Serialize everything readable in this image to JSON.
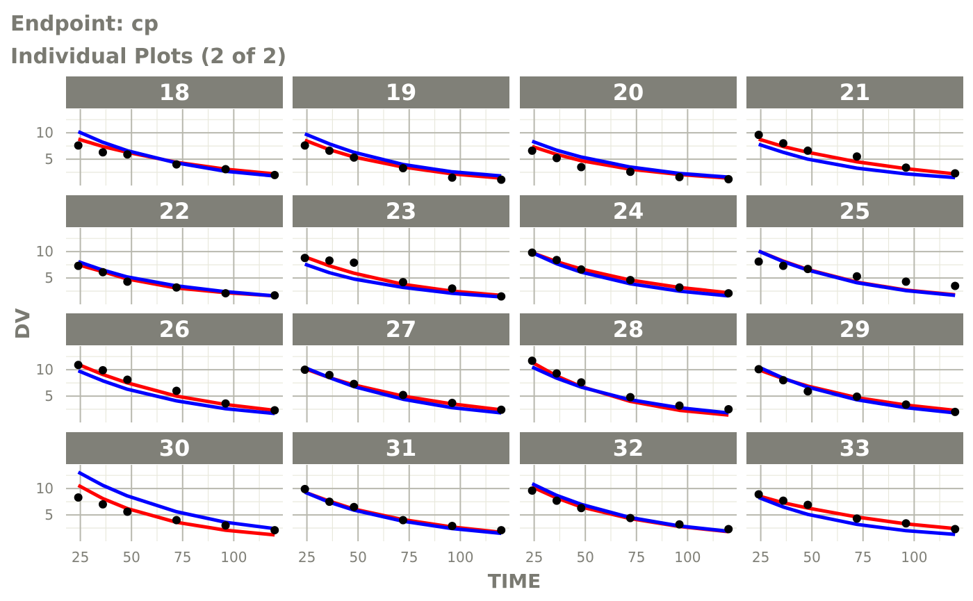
{
  "title": {
    "line1": "Endpoint:  cp",
    "line2": "Individual Plots (2 of 2)"
  },
  "colors": {
    "strip_background": "#808078",
    "strip_text": "#ffffff",
    "observed_points": "#000000",
    "series_red": "#ff0000",
    "series_blue": "#0000ff",
    "major_grid": "#b8b8ae",
    "minor_grid": "#e8e8dc"
  },
  "chart_data": {
    "type": "line",
    "layout": "facet_wrap 4x4",
    "xlabel": "TIME",
    "ylabel": "DV",
    "xlim": [
      18,
      124
    ],
    "ylim": [
      0,
      14.5
    ],
    "x_ticks": [
      25,
      50,
      75,
      100
    ],
    "y_ticks": [
      5,
      10
    ],
    "x": [
      24,
      36,
      48,
      72,
      96,
      120
    ],
    "grid": true,
    "legend": "none",
    "panels": [
      {
        "id": "18",
        "observed": [
          7.6,
          6.3,
          5.9,
          4.0,
          3.1,
          2.0
        ],
        "red": [
          8.8,
          7.4,
          6.3,
          4.4,
          3.1,
          2.2
        ],
        "blue": [
          10.2,
          8.2,
          6.6,
          4.3,
          2.7,
          1.8
        ]
      },
      {
        "id": "19",
        "observed": [
          7.6,
          6.6,
          5.3,
          3.3,
          1.5,
          1.1
        ],
        "red": [
          8.6,
          6.8,
          5.4,
          3.5,
          2.2,
          1.4
        ],
        "blue": [
          9.8,
          7.9,
          6.3,
          4.0,
          2.6,
          1.8
        ]
      },
      {
        "id": "20",
        "observed": [
          6.6,
          5.2,
          3.5,
          2.6,
          1.6,
          1.2
        ],
        "red": [
          7.4,
          5.9,
          4.7,
          3.1,
          2.1,
          1.4
        ],
        "blue": [
          8.4,
          6.7,
          5.4,
          3.5,
          2.3,
          1.6
        ]
      },
      {
        "id": "21",
        "observed": [
          9.6,
          8.0,
          6.6,
          5.5,
          3.4,
          2.3
        ],
        "red": [
          8.8,
          7.4,
          6.3,
          4.5,
          3.2,
          2.2
        ],
        "blue": [
          7.8,
          6.3,
          5.0,
          3.3,
          2.2,
          1.5
        ]
      },
      {
        "id": "22",
        "observed": [
          7.3,
          6.1,
          4.3,
          3.2,
          2.1,
          1.7
        ],
        "red": [
          7.5,
          6.2,
          4.8,
          3.1,
          2.2,
          1.6
        ],
        "blue": [
          8.1,
          6.5,
          5.2,
          3.5,
          2.4,
          1.6
        ]
      },
      {
        "id": "23",
        "observed": [
          8.8,
          8.3,
          7.9,
          4.2,
          3.0,
          1.5
        ],
        "red": [
          9.0,
          7.3,
          5.9,
          3.8,
          2.5,
          1.7
        ],
        "blue": [
          7.6,
          6.0,
          4.8,
          3.2,
          2.1,
          1.4
        ]
      },
      {
        "id": "24",
        "observed": [
          9.8,
          8.4,
          6.6,
          4.6,
          3.2,
          2.1
        ],
        "red": [
          9.8,
          8.1,
          6.7,
          4.6,
          3.2,
          2.2
        ],
        "blue": [
          9.8,
          7.7,
          6.1,
          3.9,
          2.5,
          1.6
        ]
      },
      {
        "id": "25",
        "observed": [
          8.1,
          7.3,
          6.7,
          5.3,
          4.3,
          3.5
        ],
        "red": [
          10.1,
          8.2,
          6.6,
          4.2,
          2.7,
          1.8
        ],
        "blue": [
          10.1,
          8.1,
          6.5,
          4.1,
          2.6,
          1.7
        ]
      },
      {
        "id": "26",
        "observed": [
          10.9,
          9.9,
          8.1,
          6.0,
          3.6,
          2.3
        ],
        "red": [
          11.0,
          9.1,
          7.5,
          5.0,
          3.4,
          2.3
        ],
        "blue": [
          9.8,
          7.9,
          6.3,
          4.1,
          2.6,
          1.7
        ]
      },
      {
        "id": "27",
        "observed": [
          10.0,
          9.0,
          7.3,
          5.2,
          3.7,
          2.4
        ],
        "red": [
          10.2,
          8.5,
          7.1,
          5.0,
          3.5,
          2.4
        ],
        "blue": [
          10.4,
          8.5,
          6.8,
          4.4,
          2.8,
          1.8
        ]
      },
      {
        "id": "28",
        "observed": [
          11.7,
          9.3,
          7.6,
          4.8,
          3.2,
          2.5
        ],
        "red": [
          11.4,
          8.8,
          6.8,
          4.0,
          2.3,
          1.4
        ],
        "blue": [
          10.5,
          8.4,
          6.7,
          4.3,
          2.8,
          1.8
        ]
      },
      {
        "id": "29",
        "observed": [
          10.1,
          8.0,
          5.9,
          4.9,
          3.4,
          2.0
        ],
        "red": [
          10.0,
          8.3,
          6.9,
          4.7,
          3.3,
          2.3
        ],
        "blue": [
          10.5,
          8.4,
          6.7,
          4.3,
          2.8,
          1.8
        ]
      },
      {
        "id": "30",
        "observed": [
          8.3,
          7.0,
          5.6,
          4.0,
          3.0,
          2.1
        ],
        "red": [
          10.6,
          8.1,
          6.2,
          3.6,
          2.1,
          1.2
        ],
        "blue": [
          13.1,
          10.6,
          8.6,
          5.6,
          3.6,
          2.4
        ]
      },
      {
        "id": "31",
        "observed": [
          9.9,
          7.5,
          6.5,
          4.0,
          2.9,
          2.1
        ],
        "red": [
          9.3,
          7.6,
          6.1,
          4.1,
          2.7,
          1.7
        ],
        "blue": [
          9.3,
          7.4,
          5.9,
          3.8,
          2.4,
          1.5
        ]
      },
      {
        "id": "32",
        "observed": [
          9.6,
          7.7,
          6.3,
          4.4,
          3.2,
          2.3
        ],
        "red": [
          10.3,
          8.2,
          6.5,
          4.3,
          2.8,
          1.8
        ],
        "blue": [
          10.9,
          8.7,
          7.0,
          4.5,
          2.9,
          1.9
        ]
      },
      {
        "id": "33",
        "observed": [
          8.9,
          7.7,
          6.9,
          4.3,
          3.4,
          2.3
        ],
        "red": [
          8.6,
          7.3,
          6.3,
          4.6,
          3.3,
          2.4
        ],
        "blue": [
          8.3,
          6.5,
          5.1,
          3.2,
          2.0,
          1.3
        ]
      }
    ]
  }
}
